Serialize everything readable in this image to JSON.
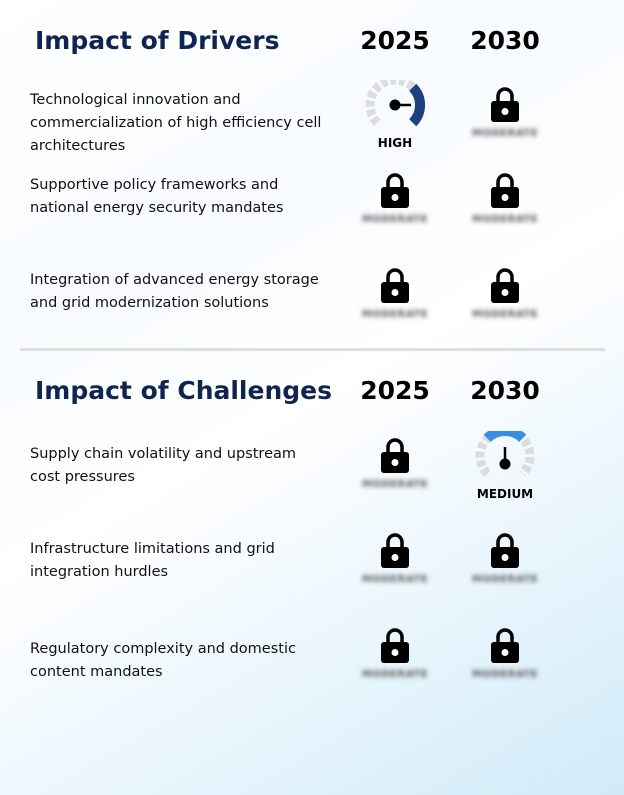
{
  "drivers": {
    "title": "Impact of Drivers",
    "year_1": "2025",
    "year_2": "2030",
    "rows": [
      {
        "text": "Technological innovation and commercialization of high efficiency cell architectures",
        "y2025": {
          "type": "gauge",
          "level": "high",
          "label": "HIGH",
          "color": "#1f3f80"
        },
        "y2030": {
          "type": "locked",
          "label": "MODERATE"
        }
      },
      {
        "text": "Supportive policy frameworks and national energy security mandates",
        "y2025": {
          "type": "locked",
          "label": "MODERATE"
        },
        "y2030": {
          "type": "locked",
          "label": "MODERATE"
        }
      },
      {
        "text": "Integration of advanced energy storage and grid modernization solutions",
        "y2025": {
          "type": "locked",
          "label": "MODERATE"
        },
        "y2030": {
          "type": "locked",
          "label": "MODERATE"
        }
      }
    ]
  },
  "challenges": {
    "title": "Impact of Challenges",
    "year_1": "2025",
    "year_2": "2030",
    "rows": [
      {
        "text": "Supply chain volatility and upstream cost pressures",
        "y2025": {
          "type": "locked",
          "label": "MODERATE"
        },
        "y2030": {
          "type": "gauge",
          "level": "medium",
          "label": "MEDIUM",
          "color": "#3a8ee0"
        }
      },
      {
        "text": "Infrastructure limitations and grid integration hurdles",
        "y2025": {
          "type": "locked",
          "label": "MODERATE"
        },
        "y2030": {
          "type": "locked",
          "label": "MODERATE"
        }
      },
      {
        "text": "Regulatory complexity and domestic content mandates",
        "y2025": {
          "type": "locked",
          "label": "MODERATE"
        },
        "y2030": {
          "type": "locked",
          "label": "MODERATE"
        }
      }
    ]
  },
  "icons": {
    "lock": "lock-icon",
    "gauge": "gauge-icon"
  },
  "colors": {
    "title": "#0f2550",
    "gauge_track": "#dcdcdc",
    "high": "#1f3f80",
    "medium": "#3a8ee0"
  }
}
